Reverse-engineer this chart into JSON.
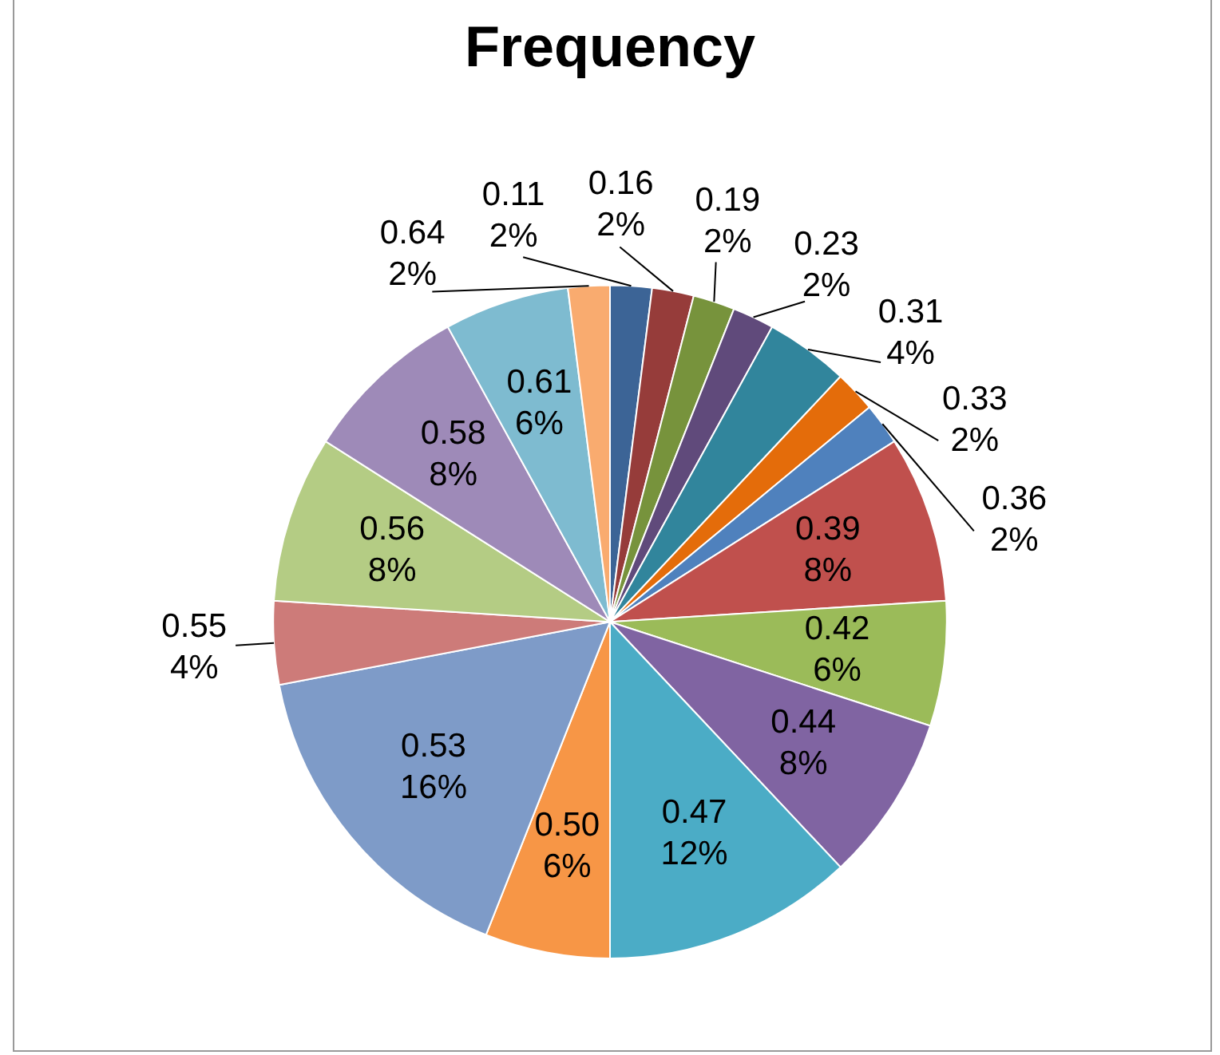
{
  "chart_data": {
    "type": "pie",
    "title": "Frequency",
    "categories": [
      "0.11",
      "0.16",
      "0.19",
      "0.23",
      "0.31",
      "0.33",
      "0.36",
      "0.39",
      "0.42",
      "0.44",
      "0.47",
      "0.50",
      "0.53",
      "0.55",
      "0.56",
      "0.58",
      "0.61",
      "0.64"
    ],
    "values": [
      2,
      2,
      2,
      2,
      4,
      2,
      2,
      8,
      6,
      8,
      12,
      6,
      16,
      4,
      8,
      8,
      6,
      2
    ],
    "value_labels": [
      "2%",
      "2%",
      "2%",
      "2%",
      "4%",
      "2%",
      "2%",
      "8%",
      "6%",
      "8%",
      "12%",
      "6%",
      "16%",
      "4%",
      "8%",
      "8%",
      "6%",
      "2%"
    ],
    "colors": [
      "#3c6496",
      "#963c3a",
      "#77933c",
      "#604a7b",
      "#31859c",
      "#e46c0a",
      "#4f81bd",
      "#c0504d",
      "#9bbb59",
      "#8064a2",
      "#4bacc6",
      "#f79646",
      "#7e9bc8",
      "#cd7b79",
      "#b4cc84",
      "#9e8ab8",
      "#7ebbd0",
      "#f9ab6f"
    ],
    "legend": false
  }
}
